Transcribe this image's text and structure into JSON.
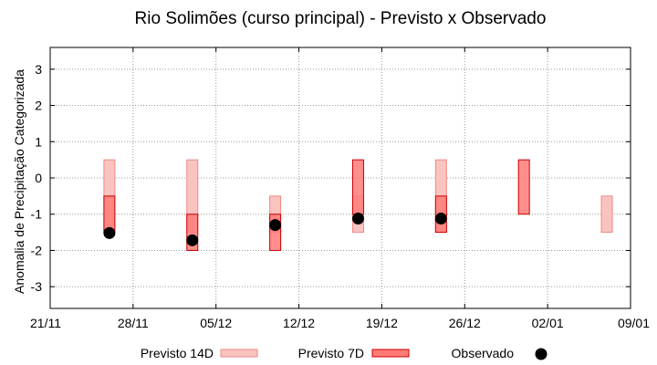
{
  "chart_data": {
    "type": "range-bar",
    "title": "Rio Solimões (curso principal) - Previsto x Observado",
    "ylabel": "Anomalia de Precipitação Categorizada",
    "xlabel": "",
    "ylim": [
      -3.6,
      3.6
    ],
    "yticks": [
      -3,
      -2,
      -1,
      0,
      1,
      2,
      3
    ],
    "xlim": [
      "2023-11-21",
      "2024-01-09"
    ],
    "xticks": [
      "21/11",
      "28/11",
      "05/12",
      "12/12",
      "19/12",
      "26/12",
      "02/01",
      "09/01"
    ],
    "grid": true,
    "legend_position": "bottom",
    "series": [
      {
        "name": "Previsto 14D",
        "color": "#f9c3c0",
        "edge": "#f08a84",
        "points": [
          {
            "date": "2023-11-26",
            "low": -1.5,
            "high": 0.5
          },
          {
            "date": "2023-12-03",
            "low": -1.5,
            "high": 0.5
          },
          {
            "date": "2023-12-10",
            "low": -1.5,
            "high": -0.5
          },
          {
            "date": "2023-12-17",
            "low": -1.5,
            "high": -0.5
          },
          {
            "date": "2023-12-24",
            "low": -1.5,
            "high": 0.5
          },
          {
            "date": "2024-01-07",
            "low": -1.5,
            "high": -0.5
          }
        ]
      },
      {
        "name": "Previsto 7D",
        "color": "#ff7b78",
        "edge": "#cc0000",
        "points": [
          {
            "date": "2023-11-26",
            "low": -1.5,
            "high": -0.5
          },
          {
            "date": "2023-12-03",
            "low": -2.0,
            "high": -1.0
          },
          {
            "date": "2023-12-10",
            "low": -2.0,
            "high": -1.0
          },
          {
            "date": "2023-12-17",
            "low": -1.0,
            "high": 0.5
          },
          {
            "date": "2023-12-24",
            "low": -1.5,
            "high": -0.5
          },
          {
            "date": "2023-12-31",
            "low": -1.0,
            "high": 0.5
          }
        ]
      },
      {
        "name": "Observado",
        "color": "#000000",
        "points": [
          {
            "date": "2023-11-26",
            "value": -1.52
          },
          {
            "date": "2023-12-03",
            "value": -1.72
          },
          {
            "date": "2023-12-10",
            "value": -1.3
          },
          {
            "date": "2023-12-17",
            "value": -1.12
          },
          {
            "date": "2023-12-24",
            "value": -1.12
          }
        ]
      }
    ]
  }
}
